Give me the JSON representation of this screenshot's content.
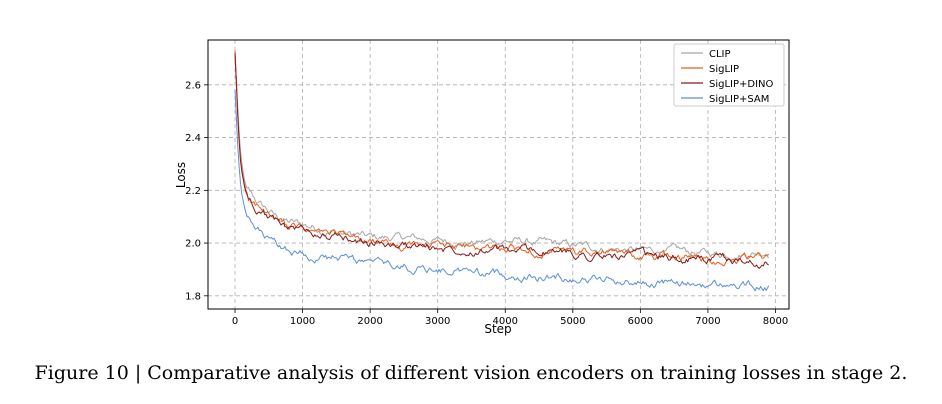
{
  "caption": "Figure 10 | Comparative analysis of different vision encoders on training losses in stage 2.",
  "chart_data": {
    "type": "line",
    "xlabel": "Step",
    "ylabel": "Loss",
    "xlim": [
      -400,
      8200
    ],
    "ylim": [
      1.75,
      2.77
    ],
    "xticks": [
      0,
      1000,
      2000,
      3000,
      4000,
      5000,
      6000,
      7000,
      8000
    ],
    "yticks": [
      1.8,
      2.0,
      2.2,
      2.4,
      2.6
    ],
    "grid": true,
    "legend_position": "top-right",
    "series": [
      {
        "name": "CLIP",
        "color": "#a6a6a6",
        "x": [
          0,
          25,
          50,
          75,
          100,
          150,
          200,
          300,
          400,
          500,
          600,
          800,
          1000,
          1200,
          1500,
          1800,
          2000,
          2500,
          3000,
          3500,
          4000,
          4500,
          5000,
          5500,
          6000,
          6500,
          7000,
          7500,
          7900
        ],
        "y": [
          2.7,
          2.6,
          2.46,
          2.36,
          2.3,
          2.22,
          2.19,
          2.16,
          2.14,
          2.12,
          2.1,
          2.08,
          2.07,
          2.06,
          2.04,
          2.03,
          2.02,
          2.02,
          2.01,
          2.0,
          2.01,
          2.0,
          1.99,
          1.98,
          1.97,
          1.97,
          1.96,
          1.96,
          1.97
        ]
      },
      {
        "name": "SigLIP",
        "color": "#e8601c",
        "x": [
          0,
          25,
          50,
          75,
          100,
          150,
          200,
          300,
          400,
          500,
          600,
          800,
          1000,
          1200,
          1500,
          1800,
          2000,
          2500,
          3000,
          3500,
          4000,
          4500,
          5000,
          5500,
          6000,
          6500,
          7000,
          7500,
          7900
        ],
        "y": [
          2.73,
          2.58,
          2.44,
          2.34,
          2.28,
          2.21,
          2.18,
          2.15,
          2.12,
          2.1,
          2.08,
          2.06,
          2.05,
          2.04,
          2.03,
          2.01,
          2.0,
          1.99,
          1.99,
          1.98,
          1.98,
          1.97,
          1.96,
          1.96,
          1.95,
          1.95,
          1.94,
          1.94,
          1.94
        ]
      },
      {
        "name": "SigLIP+DINO",
        "color": "#8b1a1a",
        "x": [
          0,
          25,
          50,
          75,
          100,
          150,
          200,
          300,
          400,
          500,
          600,
          800,
          1000,
          1200,
          1500,
          1800,
          2000,
          2500,
          3000,
          3500,
          4000,
          4500,
          5000,
          5500,
          6000,
          6500,
          7000,
          7500,
          7900
        ],
        "y": [
          2.72,
          2.57,
          2.43,
          2.33,
          2.27,
          2.2,
          2.17,
          2.14,
          2.12,
          2.1,
          2.08,
          2.06,
          2.05,
          2.04,
          2.02,
          2.01,
          2.0,
          1.99,
          1.98,
          1.98,
          1.97,
          1.97,
          1.96,
          1.95,
          1.95,
          1.94,
          1.94,
          1.93,
          1.93
        ]
      },
      {
        "name": "SigLIP+SAM",
        "color": "#5b8fd9",
        "x": [
          0,
          25,
          50,
          75,
          100,
          150,
          200,
          300,
          400,
          500,
          600,
          800,
          1000,
          1200,
          1500,
          1800,
          2000,
          2500,
          3000,
          3500,
          4000,
          4500,
          5000,
          5500,
          6000,
          6500,
          7000,
          7500,
          7900
        ],
        "y": [
          2.58,
          2.45,
          2.32,
          2.24,
          2.18,
          2.12,
          2.08,
          2.05,
          2.03,
          2.01,
          1.99,
          1.97,
          1.96,
          1.95,
          1.94,
          1.93,
          1.92,
          1.91,
          1.9,
          1.89,
          1.88,
          1.87,
          1.87,
          1.86,
          1.85,
          1.85,
          1.84,
          1.84,
          1.83
        ]
      }
    ]
  }
}
